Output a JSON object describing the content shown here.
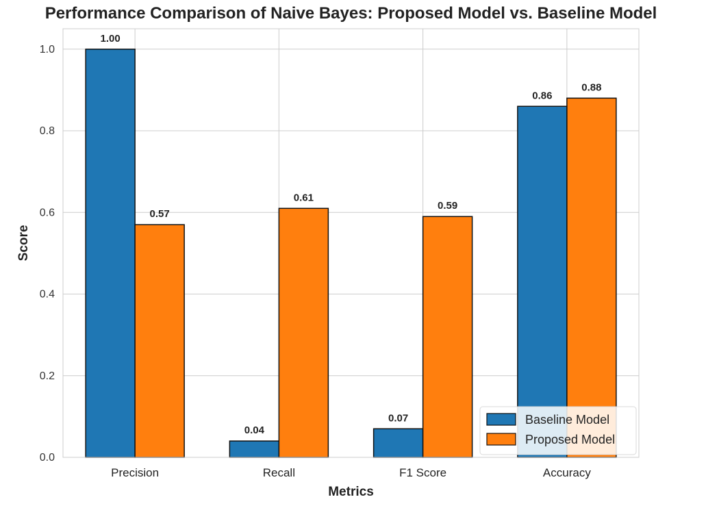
{
  "chart_data": {
    "type": "bar",
    "title": "Performance Comparison of Naive Bayes: Proposed Model vs. Baseline Model",
    "xlabel": "Metrics",
    "ylabel": "Score",
    "categories": [
      "Precision",
      "Recall",
      "F1 Score",
      "Accuracy"
    ],
    "series": [
      {
        "name": "Baseline Model",
        "color": "#1f77b4",
        "values": [
          1.0,
          0.04,
          0.07,
          0.86
        ],
        "labels": [
          "1.00",
          "0.04",
          "0.07",
          "0.86"
        ]
      },
      {
        "name": "Proposed Model",
        "color": "#ff7f0e",
        "values": [
          0.57,
          0.61,
          0.59,
          0.88
        ],
        "labels": [
          "0.57",
          "0.61",
          "0.59",
          "0.88"
        ]
      }
    ],
    "ylim": [
      0,
      1.05
    ],
    "yticks": [
      "0.0",
      "0.2",
      "0.4",
      "0.6",
      "0.8",
      "1.0"
    ],
    "grid": true,
    "legend_position": "lower right"
  }
}
